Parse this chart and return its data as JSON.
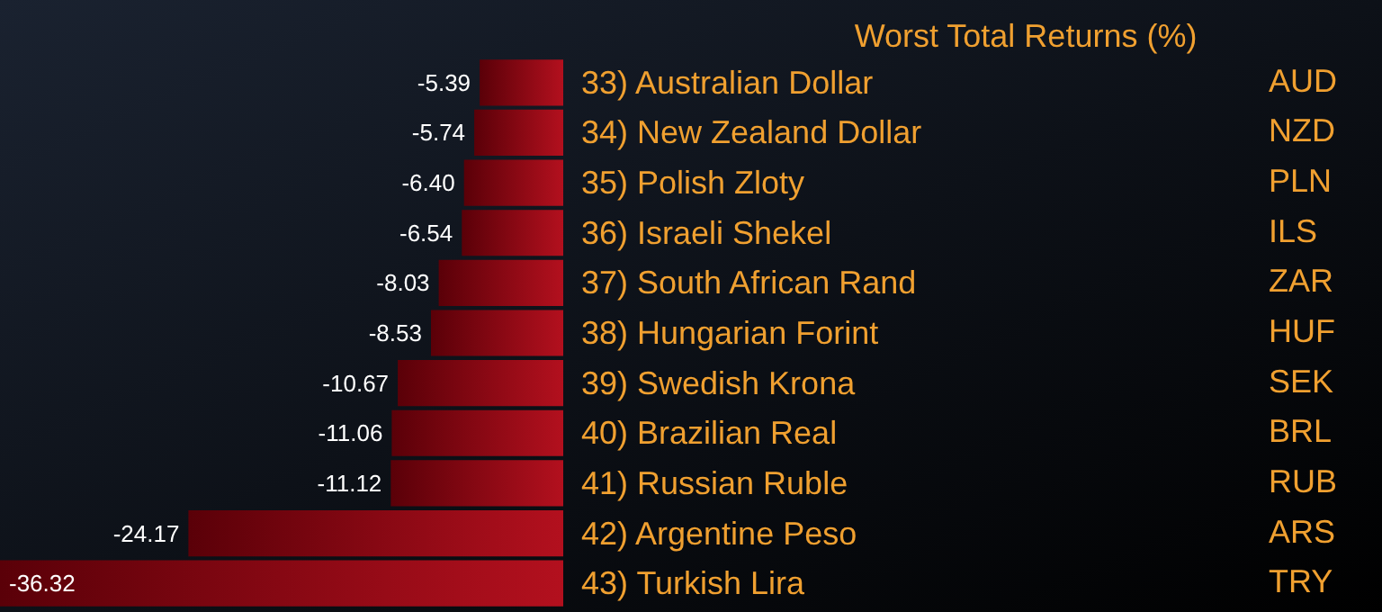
{
  "chart_data": {
    "type": "bar",
    "orientation": "horizontal",
    "title": "Worst Total Returns (%)",
    "categories": [
      "33) Australian Dollar",
      "34) New Zealand Dollar",
      "35) Polish Zloty",
      "36) Israeli Shekel",
      "37) South African Rand",
      "38) Hungarian Forint",
      "39) Swedish Krona",
      "40) Brazilian Real",
      "41) Russian Ruble",
      "42) Argentine Peso",
      "43) Turkish Lira"
    ],
    "values": [
      -5.39,
      -5.74,
      -6.4,
      -6.54,
      -8.03,
      -8.53,
      -10.67,
      -11.06,
      -11.12,
      -24.17,
      -36.32
    ],
    "color": "#b3101e",
    "value_labels": [
      "-5.39",
      "-5.74",
      "-6.40",
      "-6.54",
      "-8.03",
      "-8.53",
      "-10.67",
      "-11.06",
      "-11.12",
      "-24.17",
      "-36.32"
    ],
    "annotations": [
      "AUD",
      "NZD",
      "PLN",
      "ILS",
      "ZAR",
      "HUF",
      "SEK",
      "BRL",
      "RUB",
      "ARS",
      "TRY"
    ]
  }
}
